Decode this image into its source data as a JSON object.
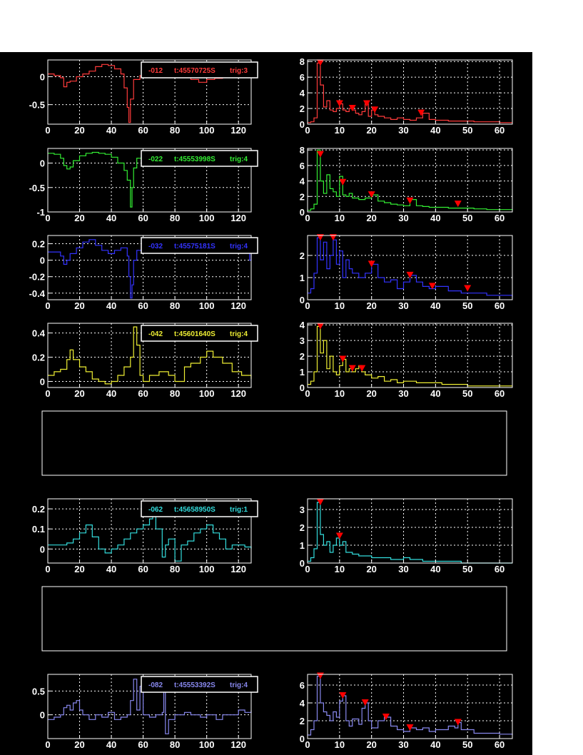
{
  "colors": {
    "background": "#000000",
    "page": "#ffffff",
    "frame": "#ffffff",
    "grid": "#ffffff",
    "marker": "#ff0000",
    "empty_box": "#ffffff"
  },
  "chart_data": [
    {
      "id": "ch1-waveform",
      "type": "line",
      "color": "#ff3b3b",
      "legend": {
        "channel": "-012",
        "time": "t:45570725S",
        "trig": "trig:3"
      },
      "xlim": [
        0,
        128
      ],
      "ylim": [
        -0.85,
        0.3
      ],
      "xticks": [
        "0",
        "20",
        "40",
        "60",
        "80",
        "100",
        "120"
      ],
      "yticks": [
        "0",
        "-0.5"
      ],
      "yticks_values": [
        0,
        -0.5
      ],
      "x": [
        0,
        4,
        8,
        10,
        12,
        14,
        18,
        22,
        26,
        30,
        34,
        38,
        42,
        46,
        48,
        50,
        51,
        52,
        54,
        58,
        62,
        70,
        80,
        90,
        95,
        100,
        105,
        110,
        115,
        120,
        125,
        128
      ],
      "values": [
        0.05,
        0.02,
        -0.02,
        -0.18,
        -0.1,
        -0.08,
        0.0,
        0.05,
        0.1,
        0.18,
        0.22,
        0.2,
        0.14,
        0.05,
        -0.2,
        -0.55,
        -0.82,
        -0.4,
        -0.05,
        0.02,
        0.0,
        0.02,
        0.0,
        -0.05,
        -0.1,
        -0.05,
        -0.03,
        0.0,
        0.02,
        0.05,
        0.0,
        0.02
      ]
    },
    {
      "id": "ch1-spectrum",
      "type": "line",
      "color": "#ff3b3b",
      "xlim": [
        0,
        64
      ],
      "ylim": [
        0,
        8.2
      ],
      "xticks": [
        "0",
        "10",
        "20",
        "30",
        "40",
        "50",
        "60"
      ],
      "yticks": [
        "0",
        "2",
        "4",
        "6",
        "8"
      ],
      "yticks_values": [
        0,
        2,
        4,
        6,
        8
      ],
      "x": [
        0,
        1,
        2,
        3,
        4,
        5,
        6,
        7,
        8,
        9,
        10,
        11,
        12,
        13,
        14,
        15,
        16,
        17,
        18,
        19,
        20,
        21,
        22,
        24,
        26,
        28,
        30,
        32,
        34,
        36,
        38,
        40,
        44,
        48,
        52,
        56,
        60,
        64
      ],
      "values": [
        0.2,
        0.3,
        0.8,
        7.8,
        5.0,
        2.2,
        3.0,
        1.8,
        1.6,
        2.0,
        2.6,
        1.8,
        1.6,
        2.0,
        1.8,
        1.4,
        1.2,
        1.6,
        2.6,
        1.0,
        1.8,
        1.2,
        1.0,
        0.8,
        0.6,
        0.8,
        0.6,
        0.5,
        0.8,
        1.4,
        0.6,
        0.5,
        0.4,
        0.4,
        0.3,
        0.3,
        0.2,
        0.2
      ],
      "peaks_x": [
        4,
        10,
        14,
        18.5,
        21,
        35.5
      ],
      "peaks_y": [
        7.8,
        2.6,
        2.0,
        2.6,
        1.8,
        1.4
      ]
    },
    {
      "id": "ch2-waveform",
      "type": "line",
      "color": "#33ee33",
      "legend": {
        "channel": "-022",
        "time": "t:45553998S",
        "trig": "trig:4"
      },
      "xlim": [
        0,
        128
      ],
      "ylim": [
        -1.0,
        0.3
      ],
      "xticks": [
        "0",
        "20",
        "40",
        "60",
        "80",
        "100",
        "120"
      ],
      "yticks": [
        "0",
        "-0.5",
        "-1"
      ],
      "yticks_values": [
        0,
        -0.5,
        -1.0
      ],
      "x": [
        0,
        4,
        8,
        10,
        12,
        14,
        16,
        20,
        24,
        28,
        32,
        36,
        40,
        44,
        48,
        50,
        52,
        53,
        54,
        56,
        60,
        70,
        80,
        90,
        100,
        110,
        120,
        128
      ],
      "values": [
        0.2,
        0.18,
        0.1,
        -0.05,
        -0.12,
        -0.08,
        0.05,
        0.15,
        0.2,
        0.22,
        0.2,
        0.18,
        0.12,
        0.0,
        -0.15,
        -0.35,
        -0.9,
        -0.5,
        -0.1,
        0.1,
        0.2,
        0.22,
        0.2,
        0.18,
        0.15,
        0.1,
        0.05,
        0.1
      ]
    },
    {
      "id": "ch2-spectrum",
      "type": "line",
      "color": "#33ee33",
      "xlim": [
        0,
        64
      ],
      "ylim": [
        0,
        8.2
      ],
      "xticks": [
        "0",
        "10",
        "20",
        "30",
        "40",
        "50",
        "60"
      ],
      "yticks": [
        "0",
        "2",
        "4",
        "6",
        "8"
      ],
      "yticks_values": [
        0,
        2,
        4,
        6,
        8
      ],
      "x": [
        0,
        1,
        2,
        3,
        4,
        5,
        6,
        7,
        8,
        9,
        10,
        11,
        12,
        13,
        14,
        16,
        18,
        20,
        22,
        24,
        26,
        28,
        30,
        32,
        34,
        36,
        38,
        40,
        44,
        48,
        52,
        56,
        60,
        64
      ],
      "values": [
        0.2,
        0.4,
        1.0,
        8.0,
        4.0,
        2.4,
        4.8,
        3.0,
        2.6,
        2.0,
        4.6,
        2.2,
        2.0,
        2.4,
        1.8,
        1.6,
        1.8,
        2.2,
        1.4,
        1.2,
        1.0,
        0.9,
        0.8,
        1.6,
        0.8,
        0.7,
        0.6,
        0.6,
        0.5,
        0.5,
        0.4,
        0.3,
        0.3,
        0.2
      ],
      "peaks_x": [
        4,
        11,
        20,
        32,
        47
      ],
      "peaks_y": [
        7.4,
        3.8,
        2.2,
        1.4,
        1.0
      ]
    },
    {
      "id": "ch3-waveform",
      "type": "line",
      "color": "#3333ff",
      "legend": {
        "channel": "-032",
        "time": "t:45575181S",
        "trig": "trig:4"
      },
      "xlim": [
        0,
        128
      ],
      "ylim": [
        -0.48,
        0.3
      ],
      "xticks": [
        "0",
        "20",
        "40",
        "60",
        "80",
        "100",
        "120"
      ],
      "yticks": [
        "0.2",
        "0",
        "-0.2",
        "-0.4"
      ],
      "yticks_values": [
        0.2,
        0,
        -0.2,
        -0.4
      ],
      "x": [
        0,
        4,
        8,
        10,
        12,
        14,
        18,
        22,
        26,
        30,
        34,
        38,
        42,
        46,
        50,
        51,
        52,
        53,
        54,
        56,
        60,
        70,
        80,
        90,
        100,
        110,
        120,
        126,
        127,
        128
      ],
      "values": [
        0.1,
        0.1,
        0.05,
        -0.05,
        0.0,
        0.08,
        0.15,
        0.22,
        0.25,
        0.18,
        0.12,
        0.08,
        0.12,
        0.15,
        0.05,
        -0.2,
        -0.46,
        -0.3,
        0.0,
        0.12,
        0.18,
        0.15,
        0.12,
        0.1,
        0.12,
        0.1,
        0.12,
        0.1,
        0.0,
        0.1
      ]
    },
    {
      "id": "ch3-spectrum",
      "type": "line",
      "color": "#3333ff",
      "xlim": [
        0,
        64
      ],
      "ylim": [
        0,
        2.9
      ],
      "xticks": [
        "0",
        "10",
        "20",
        "30",
        "40",
        "50",
        "60"
      ],
      "yticks": [
        "0",
        "1",
        "2"
      ],
      "yticks_values": [
        0,
        1,
        2
      ],
      "x": [
        0,
        1,
        2,
        3,
        4,
        5,
        6,
        7,
        8,
        9,
        10,
        11,
        12,
        13,
        14,
        16,
        18,
        20,
        22,
        24,
        26,
        28,
        30,
        32,
        34,
        36,
        38,
        40,
        44,
        48,
        52,
        56,
        60,
        64
      ],
      "values": [
        0.3,
        0.5,
        1.2,
        2.8,
        1.8,
        2.6,
        1.4,
        2.0,
        2.7,
        1.6,
        2.2,
        1.0,
        1.8,
        1.4,
        1.2,
        1.0,
        1.2,
        1.6,
        1.0,
        0.8,
        0.9,
        0.5,
        0.8,
        1.1,
        0.8,
        0.6,
        0.5,
        0.6,
        0.4,
        0.3,
        0.3,
        0.2,
        0.2,
        0.1
      ],
      "peaks_x": [
        4,
        8,
        20,
        32,
        39,
        50
      ],
      "peaks_y": [
        2.8,
        2.8,
        1.6,
        1.1,
        0.6,
        0.5
      ]
    },
    {
      "id": "ch4-waveform",
      "type": "line",
      "color": "#eeee33",
      "legend": {
        "channel": "-042",
        "time": "t:45601640S",
        "trig": "trig:4"
      },
      "xlim": [
        0,
        128
      ],
      "ylim": [
        -0.05,
        0.48
      ],
      "xticks": [
        "0",
        "20",
        "40",
        "60",
        "80",
        "100",
        "120"
      ],
      "yticks": [
        "0.4",
        "0.2",
        "0"
      ],
      "yticks_values": [
        0.4,
        0.2,
        0
      ],
      "x": [
        0,
        4,
        8,
        12,
        14,
        16,
        20,
        24,
        28,
        32,
        36,
        40,
        44,
        48,
        52,
        54,
        56,
        58,
        60,
        64,
        70,
        76,
        80,
        86,
        90,
        96,
        100,
        104,
        110,
        116,
        122,
        128
      ],
      "values": [
        0.05,
        0.08,
        0.1,
        0.18,
        0.26,
        0.18,
        0.12,
        0.08,
        0.02,
        0.0,
        -0.02,
        0.0,
        0.05,
        0.12,
        0.2,
        0.45,
        0.3,
        0.05,
        0.0,
        0.05,
        0.08,
        0.05,
        0.0,
        0.12,
        0.15,
        0.2,
        0.25,
        0.2,
        0.15,
        0.08,
        0.05,
        0.02
      ]
    },
    {
      "id": "ch4-spectrum",
      "type": "line",
      "color": "#eeee33",
      "xlim": [
        0,
        64
      ],
      "ylim": [
        0,
        4.1
      ],
      "xticks": [
        "0",
        "10",
        "20",
        "30",
        "40",
        "50",
        "60"
      ],
      "yticks": [
        "0",
        "1",
        "2",
        "3",
        "4"
      ],
      "yticks_values": [
        0,
        1,
        2,
        3,
        4
      ],
      "x": [
        0,
        1,
        2,
        3,
        4,
        5,
        6,
        7,
        8,
        9,
        10,
        11,
        12,
        13,
        14,
        15,
        16,
        17,
        18,
        20,
        22,
        24,
        26,
        28,
        30,
        34,
        38,
        42,
        46,
        50,
        54,
        58,
        64
      ],
      "values": [
        0.2,
        0.4,
        1.0,
        3.9,
        2.2,
        3.0,
        1.2,
        2.0,
        1.0,
        0.8,
        1.4,
        1.8,
        1.0,
        1.2,
        1.0,
        1.2,
        1.4,
        1.0,
        0.8,
        0.6,
        0.7,
        0.4,
        0.5,
        0.3,
        0.4,
        0.3,
        0.3,
        0.2,
        0.2,
        0.1,
        0.1,
        0.1,
        0.1
      ],
      "peaks_x": [
        4,
        11,
        14,
        17
      ],
      "peaks_y": [
        3.9,
        1.8,
        1.2,
        1.2
      ]
    },
    {
      "id": "ch6-waveform",
      "type": "line",
      "color": "#33dddd",
      "legend": {
        "channel": "-062",
        "time": "t:45658950S",
        "trig": "trig:1"
      },
      "xlim": [
        0,
        128
      ],
      "ylim": [
        -0.07,
        0.25
      ],
      "xticks": [
        "0",
        "20",
        "40",
        "60",
        "80",
        "100",
        "120"
      ],
      "yticks": [
        "0.2",
        "0.1",
        "0"
      ],
      "yticks_values": [
        0.2,
        0.1,
        0
      ],
      "x": [
        0,
        4,
        8,
        12,
        16,
        20,
        24,
        28,
        32,
        36,
        40,
        44,
        48,
        52,
        56,
        60,
        64,
        66,
        68,
        72,
        74,
        76,
        80,
        84,
        88,
        92,
        96,
        100,
        104,
        108,
        112,
        116,
        120,
        124,
        128
      ],
      "values": [
        0.02,
        0.02,
        0.02,
        0.03,
        0.05,
        0.08,
        0.12,
        0.06,
        0.0,
        -0.02,
        0.0,
        0.02,
        0.05,
        0.08,
        0.1,
        0.12,
        0.15,
        0.2,
        0.1,
        -0.04,
        0.02,
        0.05,
        -0.06,
        0.02,
        0.04,
        0.08,
        0.1,
        0.12,
        0.08,
        0.05,
        0.0,
        0.02,
        0.02,
        0.01,
        0.0
      ]
    },
    {
      "id": "ch6-spectrum",
      "type": "line",
      "color": "#33dddd",
      "xlim": [
        0,
        64
      ],
      "ylim": [
        0,
        3.6
      ],
      "xticks": [
        "0",
        "10",
        "20",
        "30",
        "40",
        "50",
        "60"
      ],
      "yticks": [
        "0",
        "1",
        "2",
        "3"
      ],
      "yticks_values": [
        0,
        1,
        2,
        3
      ],
      "x": [
        0,
        1,
        2,
        3,
        4,
        5,
        6,
        7,
        8,
        9,
        10,
        11,
        12,
        14,
        16,
        18,
        20,
        22,
        24,
        26,
        28,
        30,
        32,
        34,
        36,
        38,
        40,
        44,
        48,
        52,
        56,
        60,
        64
      ],
      "values": [
        0.1,
        0.3,
        0.8,
        3.4,
        1.6,
        1.0,
        1.2,
        0.6,
        1.0,
        1.4,
        1.0,
        1.2,
        0.6,
        0.5,
        0.4,
        0.4,
        0.3,
        0.3,
        0.3,
        0.2,
        0.2,
        0.3,
        0.2,
        0.2,
        0.1,
        0.1,
        0.1,
        0.1,
        0.0,
        0.0,
        0.0,
        0.0,
        0.0
      ],
      "peaks_x": [
        4,
        10
      ],
      "peaks_y": [
        3.4,
        1.5
      ]
    },
    {
      "id": "ch8-waveform",
      "type": "line",
      "color": "#8888ee",
      "legend": {
        "channel": "-082",
        "time": "t:45553392S",
        "trig": "trig:4"
      },
      "xlim": [
        0,
        128
      ],
      "ylim": [
        -0.5,
        0.85
      ],
      "xticks": [
        "0",
        "20",
        "40",
        "60",
        "80",
        "100",
        "120"
      ],
      "yticks": [
        "0.5",
        "0"
      ],
      "yticks_values": [
        0.5,
        0
      ],
      "x": [
        0,
        4,
        8,
        10,
        12,
        14,
        16,
        18,
        20,
        22,
        26,
        30,
        34,
        38,
        42,
        46,
        50,
        52,
        54,
        56,
        58,
        60,
        64,
        68,
        72,
        73,
        74,
        76,
        80,
        86,
        90,
        96,
        100,
        106,
        110,
        116,
        120,
        124,
        128
      ],
      "values": [
        -0.1,
        -0.05,
        0.0,
        0.15,
        0.2,
        0.1,
        0.25,
        0.3,
        0.1,
        0.0,
        -0.1,
        0.0,
        -0.05,
        0.05,
        -0.1,
        -0.05,
        0.0,
        0.3,
        0.75,
        0.1,
        0.6,
        0.0,
        -0.05,
        0.0,
        0.05,
        0.7,
        -0.4,
        -0.1,
        0.0,
        0.05,
        0.0,
        -0.05,
        0.0,
        -0.1,
        0.0,
        0.0,
        0.1,
        0.05,
        0.1
      ]
    },
    {
      "id": "ch8-spectrum",
      "type": "line",
      "color": "#8888ee",
      "xlim": [
        0,
        64
      ],
      "ylim": [
        0,
        7.2
      ],
      "xticks": [
        "0",
        "10",
        "20",
        "30",
        "40",
        "50",
        "60"
      ],
      "yticks": [
        "0",
        "2",
        "4",
        "6"
      ],
      "yticks_values": [
        0,
        2,
        4,
        6
      ],
      "x": [
        0,
        1,
        2,
        3,
        4,
        5,
        6,
        7,
        8,
        9,
        10,
        11,
        12,
        13,
        14,
        16,
        17,
        18,
        19,
        20,
        22,
        24,
        26,
        28,
        30,
        32,
        34,
        36,
        38,
        40,
        44,
        46,
        47,
        48,
        52,
        56,
        60,
        64
      ],
      "values": [
        0.4,
        1.0,
        2.0,
        7.0,
        4.0,
        3.0,
        2.6,
        2.0,
        3.0,
        2.4,
        4.2,
        4.8,
        2.0,
        1.4,
        2.2,
        1.6,
        3.4,
        4.0,
        2.0,
        1.2,
        2.0,
        2.4,
        1.4,
        1.0,
        0.8,
        1.2,
        1.0,
        1.2,
        0.8,
        1.0,
        1.4,
        1.2,
        1.8,
        1.0,
        0.6,
        0.6,
        0.5,
        0.4
      ],
      "peaks_x": [
        4,
        11,
        18,
        24.5,
        32,
        47
      ],
      "peaks_y": [
        7.0,
        4.8,
        4.0,
        2.4,
        1.2,
        1.8
      ]
    }
  ]
}
